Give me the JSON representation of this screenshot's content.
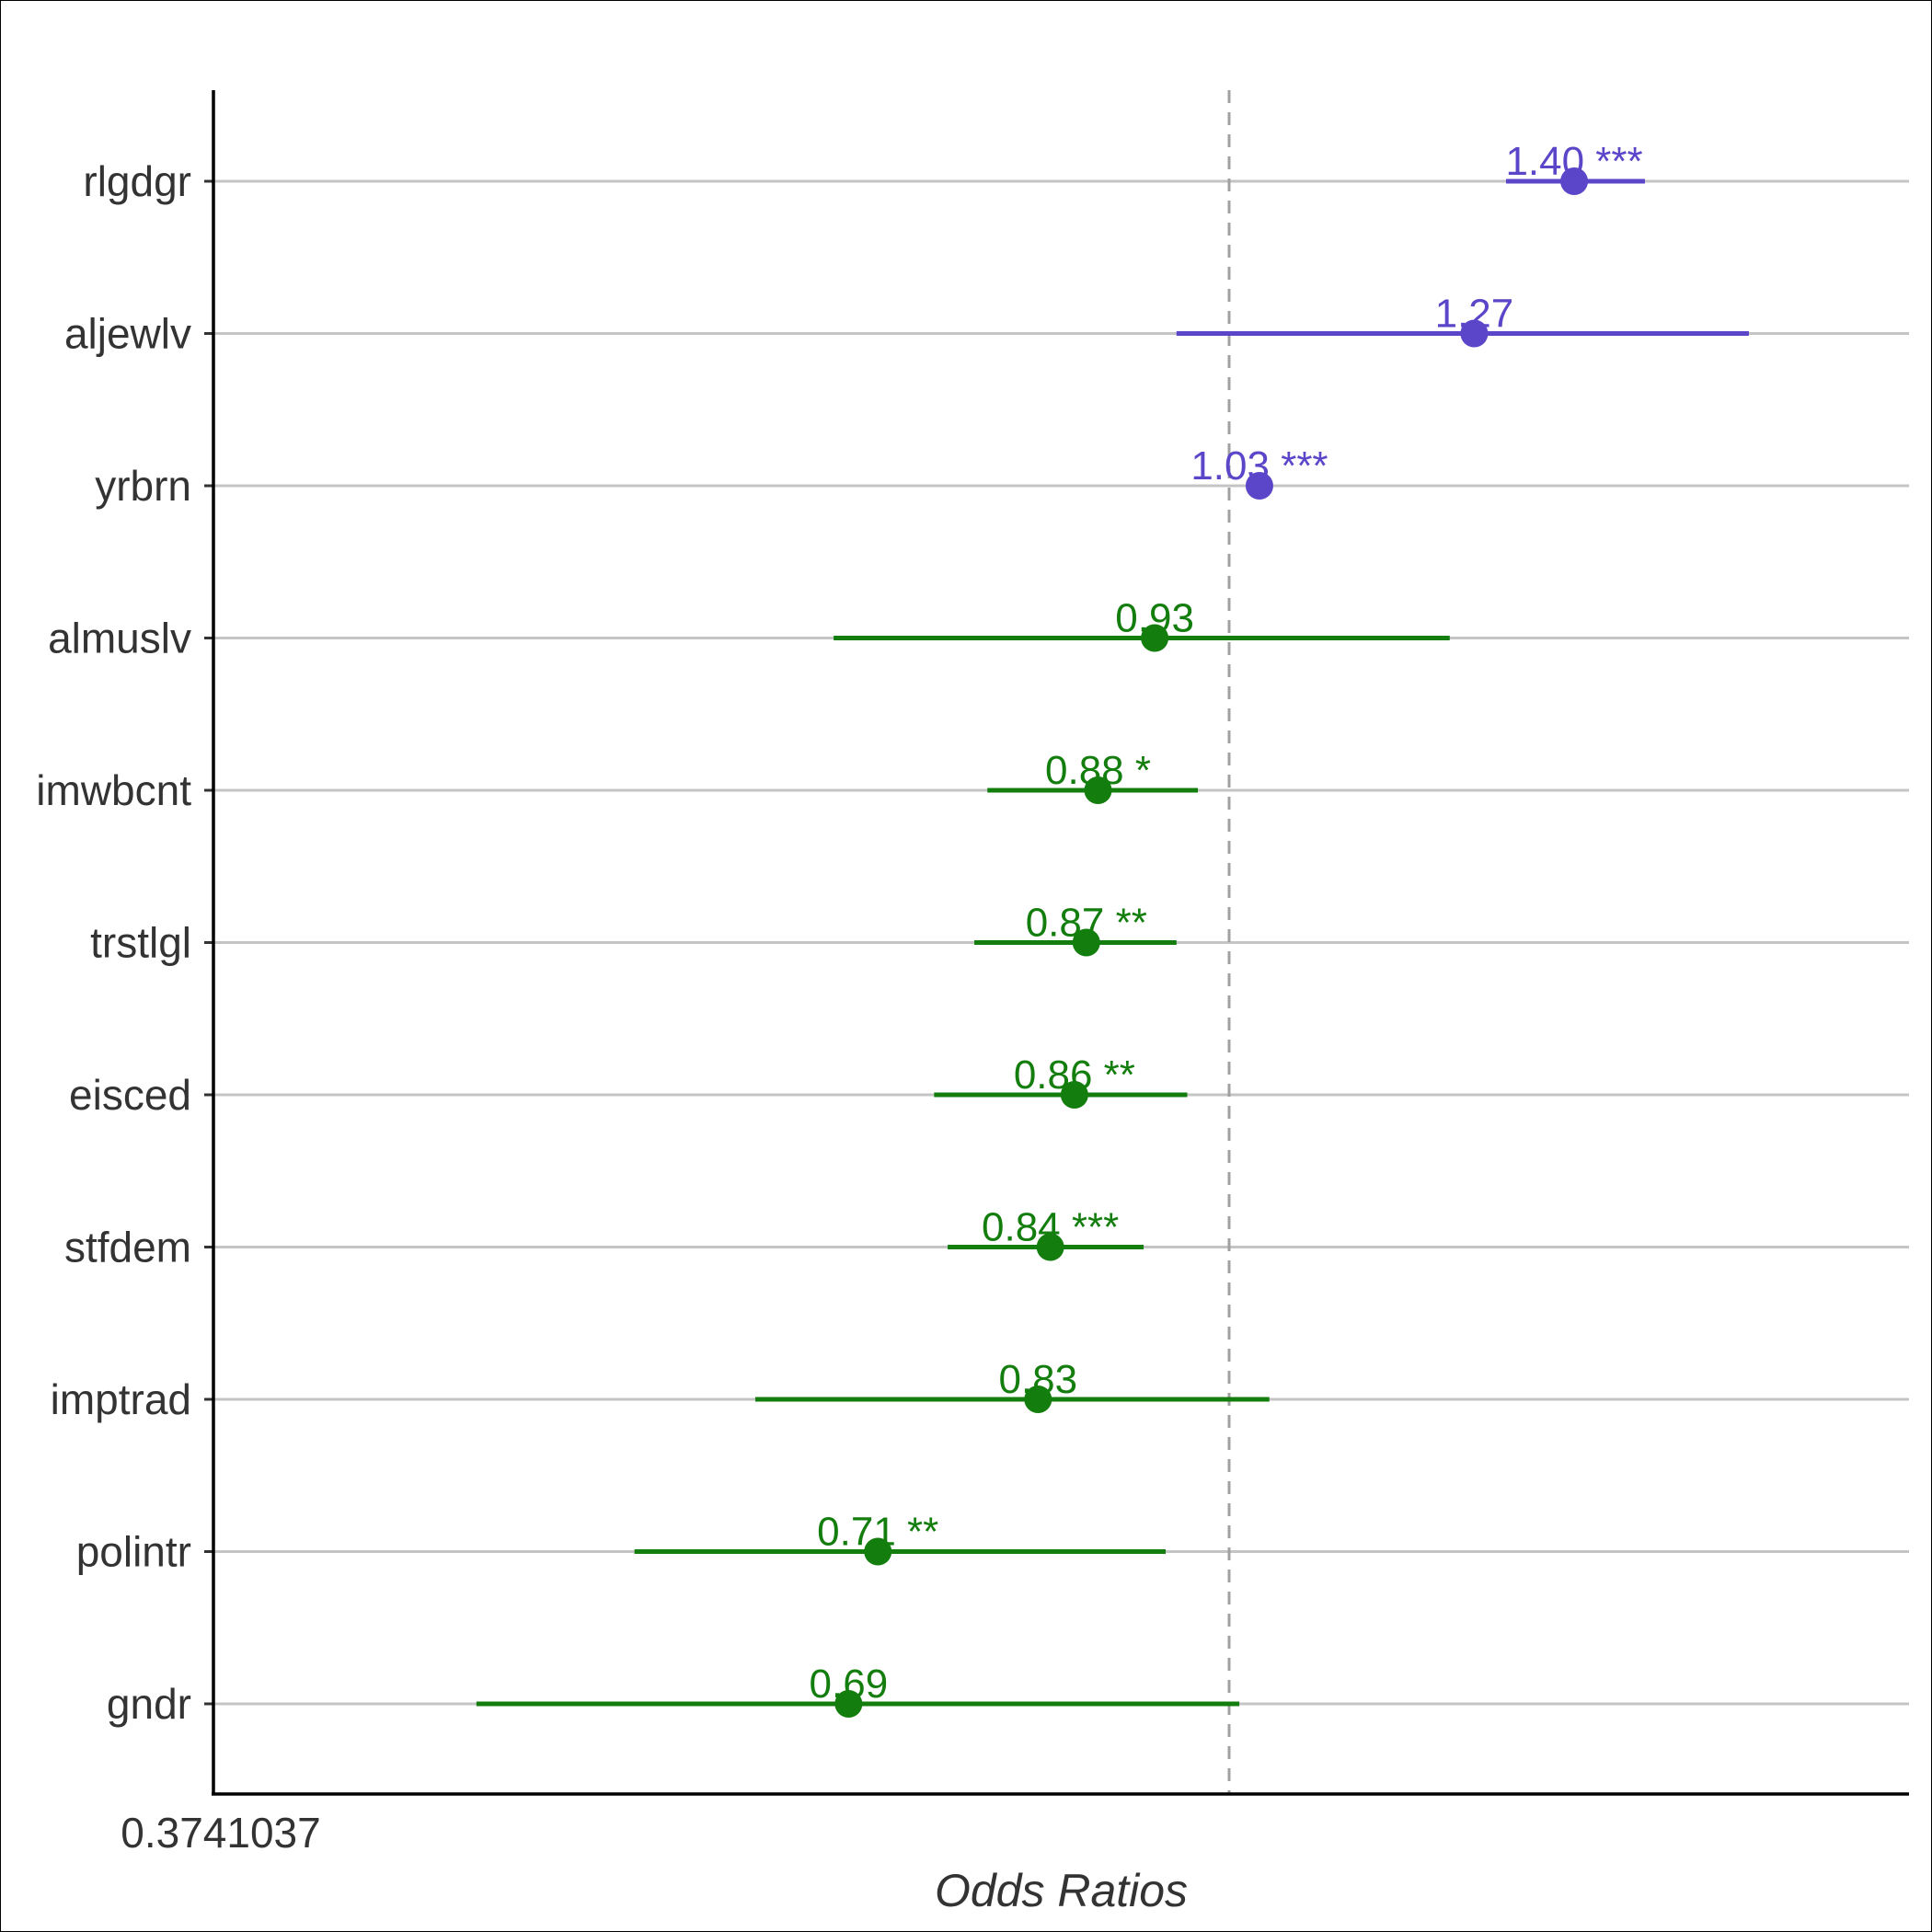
{
  "chart_data": {
    "type": "forest",
    "xlabel": "Odds Ratios",
    "x_scale": "log",
    "x_tick_labels": [
      "0.3741037"
    ],
    "x_ticks": [
      0.3741037
    ],
    "xlim": [
      0.3741037,
      1.75
    ],
    "reference_line": 1.0,
    "grid": true,
    "colors": {
      "positive": "#5b45c9",
      "negative": "#137e0e"
    },
    "rows": [
      {
        "term": "rlgdgr",
        "estimate": 1.4,
        "ci_low": 1.31,
        "ci_high": 1.5,
        "label": "1.40 ***",
        "direction": "positive"
      },
      {
        "term": "aljewlv",
        "estimate": 1.27,
        "ci_low": 0.95,
        "ci_high": 1.66,
        "label": "1.27",
        "direction": "positive"
      },
      {
        "term": "yrbrn",
        "estimate": 1.03,
        "ci_low": 1.02,
        "ci_high": 1.04,
        "label": "1.03 ***",
        "direction": "positive"
      },
      {
        "term": "almuslv",
        "estimate": 0.93,
        "ci_low": 0.68,
        "ci_high": 1.24,
        "label": "0.93",
        "direction": "negative"
      },
      {
        "term": "imwbcnt",
        "estimate": 0.88,
        "ci_low": 0.79,
        "ci_high": 0.97,
        "label": "0.88 *",
        "direction": "negative"
      },
      {
        "term": "trstlgl",
        "estimate": 0.87,
        "ci_low": 0.78,
        "ci_high": 0.95,
        "label": "0.87 **",
        "direction": "negative"
      },
      {
        "term": "eisced",
        "estimate": 0.86,
        "ci_low": 0.75,
        "ci_high": 0.96,
        "label": "0.86 **",
        "direction": "negative"
      },
      {
        "term": "stfdem",
        "estimate": 0.84,
        "ci_low": 0.76,
        "ci_high": 0.92,
        "label": "0.84 ***",
        "direction": "negative"
      },
      {
        "term": "imptrad",
        "estimate": 0.83,
        "ci_low": 0.63,
        "ci_high": 1.04,
        "label": "0.83",
        "direction": "negative"
      },
      {
        "term": "polintr",
        "estimate": 0.71,
        "ci_low": 0.56,
        "ci_high": 0.94,
        "label": "0.71 **",
        "direction": "negative"
      },
      {
        "term": "gndr",
        "estimate": 0.69,
        "ci_low": 0.48,
        "ci_high": 1.01,
        "label": "0.69",
        "direction": "negative"
      }
    ]
  }
}
